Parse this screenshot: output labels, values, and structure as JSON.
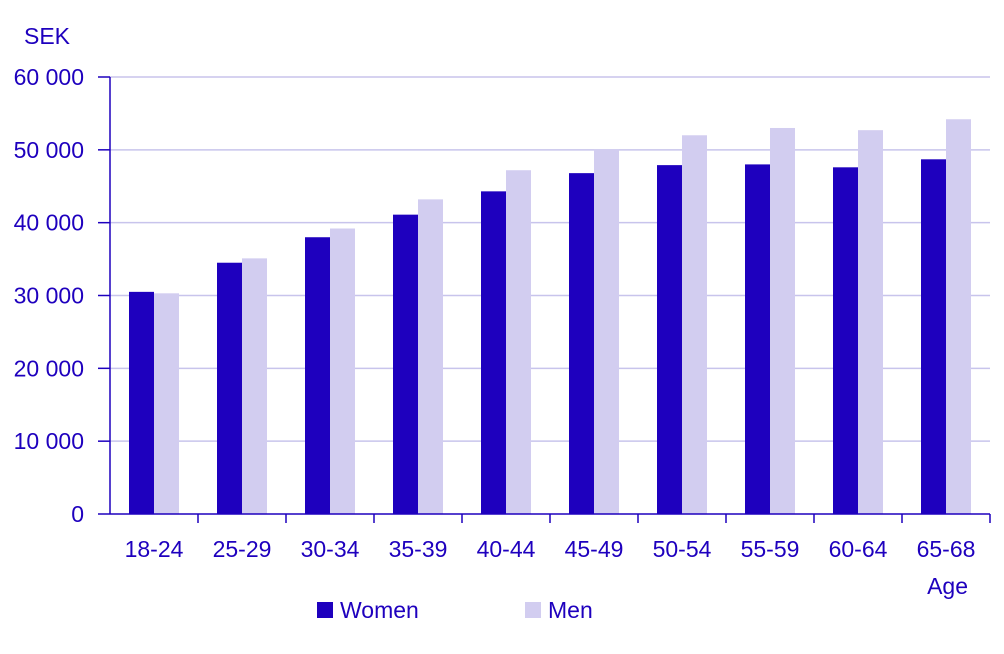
{
  "chart_data": {
    "type": "bar",
    "title": "",
    "ylabel": "SEK",
    "xlabel": "Age",
    "ylim": [
      0,
      60000
    ],
    "yticks": [
      0,
      10000,
      20000,
      30000,
      40000,
      50000,
      60000
    ],
    "ytick_labels": [
      "0",
      "10 000",
      "20 000",
      "30 000",
      "40 000",
      "50 000",
      "60 000"
    ],
    "categories": [
      "18-24",
      "25-29",
      "30-34",
      "35-39",
      "40-44",
      "45-49",
      "50-54",
      "55-59",
      "60-64",
      "65-68"
    ],
    "series": [
      {
        "name": "Women",
        "color": "#1e00be",
        "values": [
          30500,
          34500,
          38000,
          41100,
          44300,
          46800,
          47900,
          48000,
          47600,
          48700
        ]
      },
      {
        "name": "Men",
        "color": "#d2cdf0",
        "values": [
          30300,
          35100,
          39200,
          43200,
          47200,
          50100,
          52000,
          53000,
          52700,
          54200
        ]
      }
    ],
    "grid": true,
    "legend_position": "bottom",
    "axis_color": "#1e00be",
    "grid_color": "#c8c4ec"
  }
}
